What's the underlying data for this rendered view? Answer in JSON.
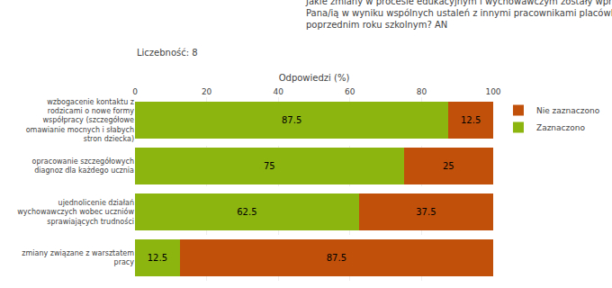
{
  "chart_data": {
    "type": "bar",
    "orientation": "horizontal",
    "stacked": true,
    "title": "Jakie zmiany w procesie edukacyjnym i wychowawczym zostały wprowadzone przez\nPana/ią w wyniku wspólnych ustaleń z innymi pracownikami placówki w tym lub\npoprzednim roku szkolnym? AN",
    "subtitle": "Liczebność: 8",
    "xlabel": "Odpowiedzi (%)",
    "categories": [
      "wzbogacenie kontaktu z\nrodzicami o nowe formy\nwspółpracy (szczegółowe\nomawianie mocnych i słabych\nstron dziecka)",
      "opracowanie szczegółowych\ndiagnoz dla każdego ucznia",
      "ujednolicenie działań\nwychowawczych wobec uczniów\nsprawiających trudności",
      "zmiany związane z warsztatem\npracy"
    ],
    "series": [
      {
        "name": "Zaznaczono",
        "color": "#8db510",
        "values": [
          87.5,
          75.0,
          62.5,
          12.5
        ]
      },
      {
        "name": "Nie zaznaczono",
        "color": "#c0500a",
        "values": [
          12.5,
          25.0,
          37.5,
          87.5
        ]
      }
    ],
    "xlim": [
      0,
      100
    ],
    "xticks": [
      0,
      20,
      40,
      60,
      80,
      100
    ],
    "grid": true,
    "legend": "right",
    "data_labels": true
  }
}
